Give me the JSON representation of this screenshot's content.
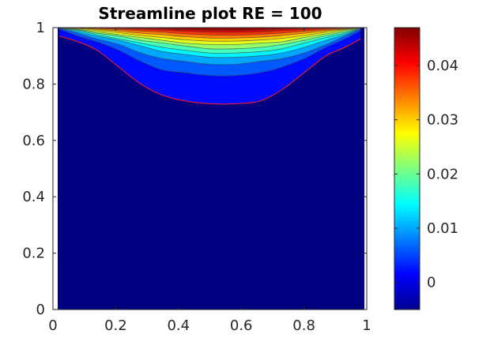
{
  "chart_data": {
    "type": "heatmap",
    "subtype": "filled-contour",
    "title": "Streamline plot RE = 100",
    "xlabel": "",
    "ylabel": "",
    "xlim": [
      0,
      1
    ],
    "ylim": [
      0,
      1
    ],
    "x_ticks": [
      "0",
      "0.2",
      "0.4",
      "0.6",
      "0.8",
      "1"
    ],
    "y_ticks": [
      "0",
      "0.2",
      "0.4",
      "0.6",
      "0.8",
      "1"
    ],
    "colormap": "jet",
    "colorbar": {
      "clim": [
        -0.005,
        0.047
      ],
      "ticks": [
        "0",
        "0.01",
        "0.02",
        "0.03",
        "0.04"
      ],
      "tick_values": [
        0,
        0.01,
        0.02,
        0.03,
        0.04
      ]
    },
    "contour_line_colors": {
      "outer": "#ff2020",
      "inner": "#404040"
    },
    "background_level": -0.005,
    "contour_levels": [
      {
        "value": 0.0,
        "y_bottom": [
          0.97,
          0.95,
          0.92,
          0.86,
          0.8,
          0.76,
          0.74,
          0.73,
          0.73,
          0.74,
          0.78,
          0.84,
          0.9,
          0.93,
          0.96
        ]
      },
      {
        "value": 0.004,
        "y_bottom": [
          0.995,
          0.97,
          0.95,
          0.92,
          0.88,
          0.85,
          0.84,
          0.83,
          0.83,
          0.84,
          0.86,
          0.89,
          0.93,
          0.96,
          0.99
        ]
      },
      {
        "value": 0.008,
        "y_bottom": [
          0.998,
          0.98,
          0.96,
          0.94,
          0.91,
          0.89,
          0.88,
          0.87,
          0.87,
          0.88,
          0.89,
          0.91,
          0.94,
          0.97,
          0.995
        ]
      },
      {
        "value": 0.012,
        "y_bottom": [
          0.999,
          0.985,
          0.97,
          0.955,
          0.935,
          0.915,
          0.905,
          0.895,
          0.895,
          0.9,
          0.91,
          0.93,
          0.955,
          0.975,
          0.997
        ]
      },
      {
        "value": 0.016,
        "y_bottom": [
          0.999,
          0.99,
          0.975,
          0.96,
          0.945,
          0.93,
          0.92,
          0.91,
          0.91,
          0.915,
          0.925,
          0.945,
          0.965,
          0.98,
          0.998
        ]
      },
      {
        "value": 0.02,
        "y_bottom": [
          0.999,
          0.992,
          0.98,
          0.97,
          0.955,
          0.945,
          0.935,
          0.925,
          0.925,
          0.93,
          0.94,
          0.955,
          0.972,
          0.985,
          0.998
        ]
      },
      {
        "value": 0.024,
        "y_bottom": [
          0.999,
          0.994,
          0.985,
          0.975,
          0.965,
          0.955,
          0.945,
          0.94,
          0.94,
          0.945,
          0.95,
          0.965,
          0.978,
          0.99,
          0.999
        ]
      },
      {
        "value": 0.028,
        "y_bottom": [
          1.0,
          0.996,
          0.99,
          0.982,
          0.972,
          0.965,
          0.957,
          0.952,
          0.952,
          0.956,
          0.962,
          0.972,
          0.984,
          0.993,
          0.999
        ]
      },
      {
        "value": 0.032,
        "y_bottom": [
          1.0,
          0.998,
          0.994,
          0.988,
          0.98,
          0.975,
          0.968,
          0.963,
          0.963,
          0.966,
          0.972,
          0.98,
          0.989,
          0.995,
          1.0
        ]
      },
      {
        "value": 0.036,
        "y_bottom": [
          1.0,
          0.999,
          0.997,
          0.993,
          0.988,
          0.984,
          0.978,
          0.974,
          0.973,
          0.976,
          0.981,
          0.987,
          0.993,
          0.997,
          1.0
        ]
      },
      {
        "value": 0.04,
        "y_bottom": [
          1.0,
          1.0,
          0.999,
          0.997,
          0.994,
          0.991,
          0.987,
          0.984,
          0.983,
          0.985,
          0.989,
          0.993,
          0.997,
          0.999,
          1.0
        ]
      },
      {
        "value": 0.044,
        "y_bottom": [
          1.0,
          1.0,
          1.0,
          0.999,
          0.998,
          0.996,
          0.993,
          0.991,
          0.99,
          0.992,
          0.995,
          0.998,
          0.999,
          1.0,
          1.0
        ]
      }
    ],
    "contour_x": [
      0.02,
      0.08,
      0.14,
      0.21,
      0.28,
      0.35,
      0.42,
      0.5,
      0.58,
      0.66,
      0.73,
      0.8,
      0.87,
      0.93,
      0.98
    ],
    "grid": false
  }
}
